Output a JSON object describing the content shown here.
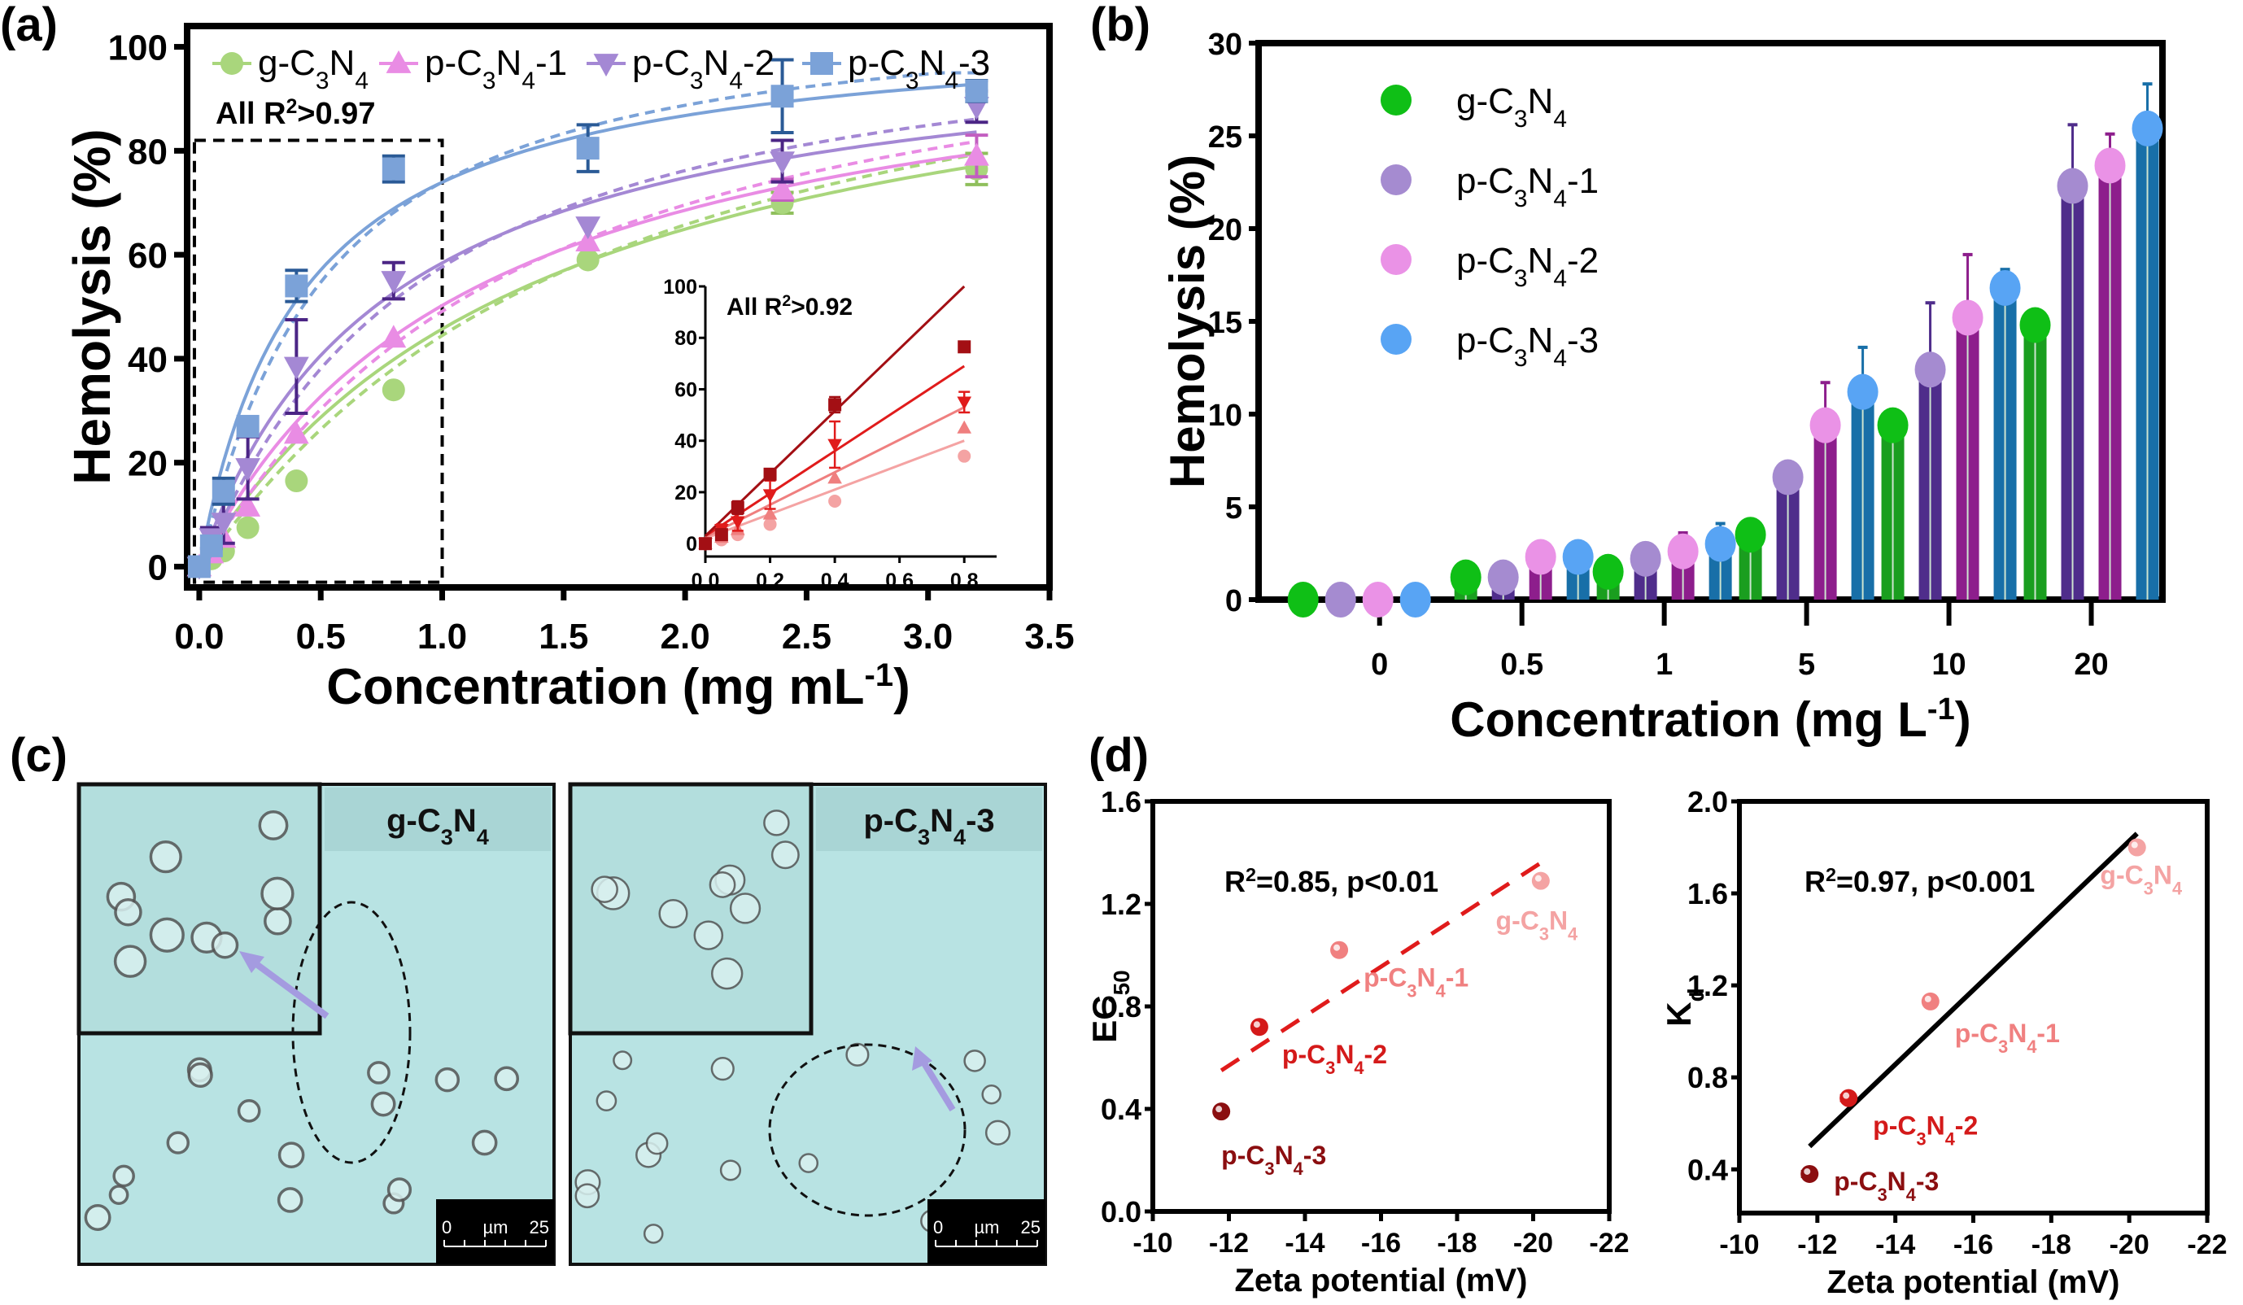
{
  "panels": {
    "a": "(a)",
    "b": "(b)",
    "c": "(c)",
    "d": "(d)"
  },
  "chart_data": [
    {
      "id": "a",
      "type": "scatter",
      "title": "",
      "xlabel": "Concentration (mg mL-1)",
      "xlabel_main": "Concentration (mg mL",
      "xlabel_sup": "-1",
      "xlabel_tail": ")",
      "ylabel": "Hemolysis (%)",
      "xlim": [
        -0.05,
        3.5
      ],
      "ylim": [
        -4,
        104
      ],
      "xticks": [
        "0.0",
        "0.5",
        "1.0",
        "1.5",
        "2.0",
        "2.5",
        "3.0",
        "3.5"
      ],
      "xtick_values": [
        0,
        0.5,
        1,
        1.5,
        2,
        2.5,
        3,
        3.5
      ],
      "yticks": [
        "0",
        "20",
        "40",
        "60",
        "80",
        "100"
      ],
      "ytick_values": [
        0,
        20,
        40,
        60,
        80,
        100
      ],
      "annotation": {
        "main": "All R",
        "sup": "2",
        "tail": ">0.97"
      },
      "legend_position": "top",
      "x": [
        0,
        0.05,
        0.1,
        0.2,
        0.4,
        0.8,
        1.6,
        2.4,
        3.2
      ],
      "series": [
        {
          "name": "g-C3N4",
          "label_parts": [
            "g-C",
            "3",
            "N",
            "4",
            ""
          ],
          "marker": "circle",
          "color": "#a9d67c",
          "err_color": "#8fbf5c",
          "values": [
            0,
            1.5,
            3,
            7.5,
            16.5,
            34,
            59,
            70,
            76.5
          ],
          "errors": [
            0,
            0,
            0,
            0,
            0,
            0,
            0,
            2,
            3
          ],
          "fit_a": 112,
          "fit_k": 1.45
        },
        {
          "name": "p-C3N4-1",
          "label_parts": [
            "p-C",
            "3",
            "N",
            "4",
            "-1"
          ],
          "marker": "triangle-up",
          "color": "#e98ce4",
          "err_color": "#c25ec0",
          "values": [
            0,
            2.5,
            5.5,
            11.5,
            25.5,
            44,
            62.5,
            72.5,
            79
          ],
          "errors": [
            0,
            0,
            0,
            0,
            0,
            0,
            0,
            2,
            4
          ],
          "fit_a": 108,
          "fit_k": 1.15
        },
        {
          "name": "p-C3N4-2",
          "label_parts": [
            "p-C",
            "3",
            "N",
            "4",
            "-2"
          ],
          "marker": "triangle-down",
          "color": "#a488d4",
          "err_color": "#4b2585",
          "values": [
            0,
            5.5,
            8.5,
            19,
            38.5,
            55,
            65.5,
            78,
            88.5
          ],
          "errors": [
            0,
            2,
            4,
            6,
            9,
            3.5,
            0,
            4,
            3
          ],
          "fit_a": 104,
          "fit_k": 0.78
        },
        {
          "name": "p-C3N4-3",
          "label_parts": [
            "p-C",
            "3",
            "N",
            "4",
            "-3"
          ],
          "marker": "square",
          "color": "#7ba2d8",
          "err_color": "#2a5a96",
          "values": [
            0,
            4,
            14.5,
            27,
            54,
            76.5,
            80.5,
            90.5,
            91.5
          ],
          "errors": [
            0,
            0,
            2.5,
            0,
            3,
            2.5,
            4.5,
            7,
            2
          ],
          "fit_a": 105,
          "fit_k": 0.42
        }
      ],
      "inset": {
        "type": "scatter",
        "xlim": [
          0,
          0.9
        ],
        "ylim": [
          -5,
          100
        ],
        "xticks": [
          "0.0",
          "0.2",
          "0.4",
          "0.6",
          "0.8"
        ],
        "xtick_values": [
          0,
          0.2,
          0.4,
          0.6,
          0.8
        ],
        "yticks": [
          "0",
          "20",
          "40",
          "60",
          "80",
          "100"
        ],
        "ytick_values": [
          0,
          20,
          40,
          60,
          80,
          100
        ],
        "annotation": {
          "main": "All R",
          "sup": "2",
          "tail": ">0.92"
        },
        "x": [
          0,
          0.05,
          0.1,
          0.2,
          0.4,
          0.8
        ],
        "series": [
          {
            "name": "g-C3N4",
            "marker": "circle",
            "color": "#f4a3a3",
            "values": [
              0,
              1.5,
              3.5,
              7.5,
              16.5,
              34
            ],
            "errors": [
              0,
              0,
              0,
              0,
              0,
              0
            ],
            "fit": [
              2,
              40
            ]
          },
          {
            "name": "p-C3N4-1",
            "marker": "triangle-up",
            "color": "#ef7f7f",
            "values": [
              0,
              2.5,
              5.5,
              11.5,
              25.5,
              45
            ],
            "errors": [
              0,
              0,
              0,
              0,
              0,
              0
            ],
            "fit": [
              2.5,
              53
            ]
          },
          {
            "name": "p-C3N4-2",
            "marker": "triangle-down",
            "color": "#e01b1b",
            "values": [
              0,
              5.5,
              8.5,
              19,
              38.5,
              55
            ],
            "errors": [
              0,
              2,
              3.5,
              5.5,
              9,
              4
            ],
            "fit": [
              3,
              69
            ]
          },
          {
            "name": "p-C3N4-3",
            "marker": "square",
            "color": "#a30f14",
            "values": [
              0,
              3.5,
              14,
              27,
              54,
              76.5
            ],
            "errors": [
              0,
              0,
              2.5,
              0,
              3,
              2
            ],
            "fit": [
              3,
              100
            ]
          }
        ]
      }
    },
    {
      "id": "b",
      "type": "bar",
      "title": "",
      "xlabel": "Concentration (mg L-1)",
      "xlabel_main": "Concentration (mg L",
      "xlabel_sup": "-1",
      "xlabel_tail": ")",
      "ylabel": "Hemolysis  (%)",
      "categories": [
        "0",
        "0.5",
        "1",
        "5",
        "10",
        "20"
      ],
      "ylim": [
        0,
        30
      ],
      "yticks": [
        "0",
        "5",
        "10",
        "15",
        "20",
        "25",
        "30"
      ],
      "ytick_values": [
        0,
        5,
        10,
        15,
        20,
        25,
        30
      ],
      "legend_position": "top-left",
      "series": [
        {
          "name": "g-C3N4",
          "label_parts": [
            "g-C",
            "3",
            "N",
            "4",
            ""
          ],
          "color": "#1a9e1f",
          "dot": "#0fbf16",
          "values": [
            0,
            1.2,
            1.5,
            3.5,
            9.4,
            14.8
          ],
          "errors": [
            0,
            0,
            0,
            0,
            0,
            0
          ]
        },
        {
          "name": "p-C3N4-1",
          "label_parts": [
            "p-C",
            "3",
            "N",
            "4",
            "-1"
          ],
          "color": "#4f2d8b",
          "dot": "#a58bd0",
          "values": [
            0,
            1.2,
            2.2,
            6.6,
            12.4,
            22.3
          ],
          "errors": [
            0,
            0,
            0,
            0,
            3.6,
            3.3
          ]
        },
        {
          "name": "p-C3N4-2",
          "label_parts": [
            "p-C",
            "3",
            "N",
            "4",
            "-2"
          ],
          "color": "#8d1e8c",
          "dot": "#ea92e6",
          "values": [
            0,
            2.3,
            2.6,
            9.4,
            15.2,
            23.4
          ],
          "errors": [
            0,
            0,
            1,
            2.3,
            3.4,
            1.7
          ]
        },
        {
          "name": "p-C3N4-3",
          "label_parts": [
            "p-C",
            "3",
            "N",
            "4",
            "-3"
          ],
          "color": "#186fa8",
          "dot": "#58a4f4",
          "values": [
            0,
            2.3,
            3.0,
            11.2,
            16.8,
            25.4
          ],
          "errors": [
            0,
            0,
            1.1,
            2.4,
            1,
            2.4
          ]
        }
      ]
    },
    {
      "id": "d-left",
      "type": "scatter",
      "xlabel": "Zeta potential (mV)",
      "ylabel_main": "EC",
      "ylabel_sub": "50",
      "xlim": [
        -10,
        -22
      ],
      "ylim": [
        0,
        1.6
      ],
      "xticks": [
        "-10",
        "-12",
        "-14",
        "-16",
        "-18",
        "-20",
        "-22"
      ],
      "xtick_values": [
        -10,
        -12,
        -14,
        -16,
        -18,
        -20,
        -22
      ],
      "yticks": [
        "0.0",
        "0.4",
        "0.8",
        "1.2",
        "1.6"
      ],
      "ytick_values": [
        0,
        0.4,
        0.8,
        1.2,
        1.6
      ],
      "annotation": {
        "main": "R",
        "sup": "2",
        "tail": "=0.85, p<0.01"
      },
      "fit": {
        "style": "dashed",
        "color": "#e01b1b",
        "x": [
          -11.8,
          -20.2
        ],
        "y": [
          0.55,
          1.36
        ]
      },
      "points": [
        {
          "name": "g-C3N4",
          "label_parts": [
            "g-C",
            "3",
            "N",
            "4",
            ""
          ],
          "x": -20.2,
          "y": 1.29,
          "color": "#f4a3a3"
        },
        {
          "name": "p-C3N4-1",
          "label_parts": [
            "p-C",
            "3",
            "N",
            "4",
            "-1"
          ],
          "x": -14.9,
          "y": 1.02,
          "color": "#f08080"
        },
        {
          "name": "p-C3N4-2",
          "label_parts": [
            "p-C",
            "3",
            "N",
            "4",
            "-2"
          ],
          "x": -12.8,
          "y": 0.72,
          "color": "#d41a1a"
        },
        {
          "name": "p-C3N4-3",
          "label_parts": [
            "p-C",
            "3",
            "N",
            "4",
            "-3"
          ],
          "x": -11.8,
          "y": 0.39,
          "color": "#8b0e10"
        }
      ]
    },
    {
      "id": "d-right",
      "type": "scatter",
      "xlabel": "Zeta potential (mV)",
      "ylabel_main": "K",
      "ylabel_sub": "d",
      "xlim": [
        -10,
        -22
      ],
      "ylim": [
        0.21,
        2.0
      ],
      "xticks": [
        "-10",
        "-12",
        "-14",
        "-16",
        "-18",
        "-20",
        "-22"
      ],
      "xtick_values": [
        -10,
        -12,
        -14,
        -16,
        -18,
        -20,
        -22
      ],
      "yticks": [
        "0.4",
        "0.8",
        "1.2",
        "1.6",
        "2.0"
      ],
      "ytick_values": [
        0.4,
        0.8,
        1.2,
        1.6,
        2.0
      ],
      "annotation": {
        "main": "R",
        "sup": "2",
        "tail": "=0.97, p<0.001"
      },
      "fit": {
        "style": "solid",
        "color": "#000000",
        "x": [
          -11.8,
          -20.2
        ],
        "y": [
          0.5,
          1.86
        ]
      },
      "points": [
        {
          "name": "g-C3N4",
          "label_parts": [
            "g-C",
            "3",
            "N",
            "4",
            ""
          ],
          "x": -20.2,
          "y": 1.8,
          "xerr": 0.15,
          "color": "#f4a3a3"
        },
        {
          "name": "p-C3N4-1",
          "label_parts": [
            "p-C",
            "3",
            "N",
            "4",
            "-1"
          ],
          "x": -14.9,
          "y": 1.13,
          "xerr": 0.05,
          "color": "#f08080"
        },
        {
          "name": "p-C3N4-2",
          "label_parts": [
            "p-C",
            "3",
            "N",
            "4",
            "-2"
          ],
          "x": -12.8,
          "y": 0.71,
          "xerr": 0.2,
          "color": "#d41a1a"
        },
        {
          "name": "p-C3N4-3",
          "label_parts": [
            "p-C",
            "3",
            "N",
            "4",
            "-3"
          ],
          "x": -11.8,
          "y": 0.38,
          "xerr": 0.2,
          "color": "#8b0e10"
        }
      ]
    }
  ],
  "micrographs": [
    {
      "label_parts": [
        "g-C",
        "3",
        "N",
        "4",
        ""
      ],
      "scale_start": "0",
      "scale_unit": "µm",
      "scale_end": "25",
      "background": "#b8e3e3"
    },
    {
      "label_parts": [
        "p-C",
        "3",
        "N",
        "4",
        "-3"
      ],
      "scale_start": "0",
      "scale_unit": "µm",
      "scale_end": "25",
      "background": "#b8e3e3"
    }
  ]
}
